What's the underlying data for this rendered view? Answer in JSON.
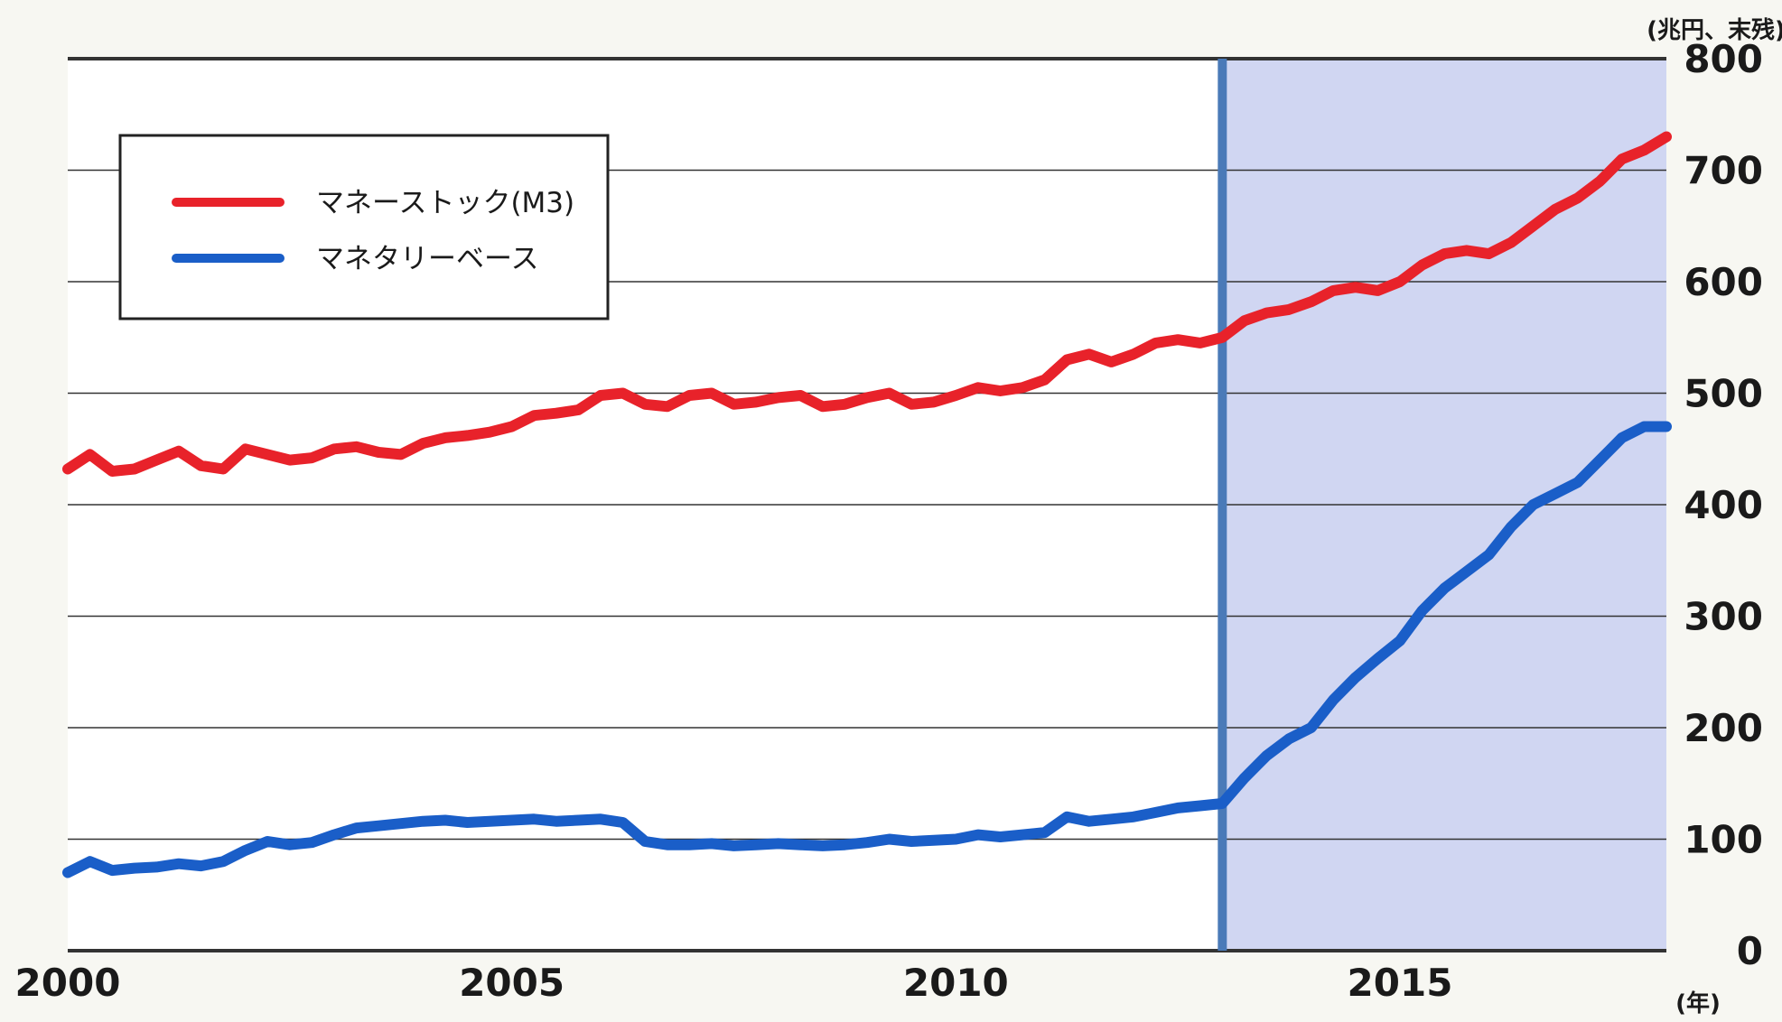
{
  "chart_data": {
    "type": "line",
    "title": "",
    "xlabel": "",
    "ylabel": "",
    "y_unit_label": "(兆円、末残)",
    "x_unit_label": "(年)",
    "xlim": [
      2000,
      2018
    ],
    "ylim": [
      0,
      800
    ],
    "x_ticks": [
      2000,
      2005,
      2010,
      2015
    ],
    "x_tick_labels": [
      "2000",
      "2005",
      "2010",
      "2015"
    ],
    "y_ticks": [
      0,
      100,
      200,
      300,
      400,
      500,
      600,
      700,
      800
    ],
    "y_tick_labels": [
      "0",
      "100",
      "200",
      "300",
      "400",
      "500",
      "600",
      "700",
      "800"
    ],
    "grid": true,
    "legend_position": "top-left",
    "colors": {
      "background": "#ffffff",
      "shaded_region": "#d0d6f2",
      "vertical_marker": "#4a7ab8",
      "gridline": "#333333"
    },
    "shaded_region": {
      "x_start": 2013,
      "x_end": 2018
    },
    "vertical_marker_x": 2013,
    "series": [
      {
        "name": "マネーストック(M3)",
        "color": "#e8222a",
        "x": [
          2000,
          2000.25,
          2000.5,
          2000.75,
          2001,
          2001.25,
          2001.5,
          2001.75,
          2002,
          2002.25,
          2002.5,
          2002.75,
          2003,
          2003.25,
          2003.5,
          2003.75,
          2004,
          2004.25,
          2004.5,
          2004.75,
          2005,
          2005.25,
          2005.5,
          2005.75,
          2006,
          2006.25,
          2006.5,
          2006.75,
          2007,
          2007.25,
          2007.5,
          2007.75,
          2008,
          2008.25,
          2008.5,
          2008.75,
          2009,
          2009.25,
          2009.5,
          2009.75,
          2010,
          2010.25,
          2010.5,
          2010.75,
          2011,
          2011.25,
          2011.5,
          2011.75,
          2012,
          2012.25,
          2012.5,
          2012.75,
          2013,
          2013.25,
          2013.5,
          2013.75,
          2014,
          2014.25,
          2014.5,
          2014.75,
          2015,
          2015.25,
          2015.5,
          2015.75,
          2016,
          2016.25,
          2016.5,
          2016.75,
          2017,
          2017.25,
          2017.5,
          2017.75,
          2018
        ],
        "values": [
          432,
          445,
          430,
          432,
          440,
          448,
          435,
          432,
          450,
          445,
          440,
          442,
          450,
          452,
          447,
          445,
          455,
          460,
          462,
          465,
          470,
          480,
          482,
          485,
          498,
          500,
          490,
          488,
          498,
          500,
          490,
          492,
          496,
          498,
          488,
          490,
          496,
          500,
          490,
          492,
          498,
          505,
          502,
          505,
          512,
          530,
          535,
          528,
          535,
          545,
          548,
          545,
          550,
          565,
          572,
          575,
          582,
          592,
          595,
          592,
          600,
          615,
          625,
          628,
          625,
          635,
          650,
          665,
          675,
          690,
          710,
          718,
          730
        ]
      },
      {
        "name": "マネタリーベース",
        "color": "#1a5ec8",
        "x": [
          2000,
          2000.25,
          2000.5,
          2000.75,
          2001,
          2001.25,
          2001.5,
          2001.75,
          2002,
          2002.25,
          2002.5,
          2002.75,
          2003,
          2003.25,
          2003.5,
          2003.75,
          2004,
          2004.25,
          2004.5,
          2004.75,
          2005,
          2005.25,
          2005.5,
          2005.75,
          2006,
          2006.25,
          2006.5,
          2006.75,
          2007,
          2007.25,
          2007.5,
          2007.75,
          2008,
          2008.25,
          2008.5,
          2008.75,
          2009,
          2009.25,
          2009.5,
          2009.75,
          2010,
          2010.25,
          2010.5,
          2010.75,
          2011,
          2011.25,
          2011.5,
          2011.75,
          2012,
          2012.25,
          2012.5,
          2012.75,
          2013,
          2013.25,
          2013.5,
          2013.75,
          2014,
          2014.25,
          2014.5,
          2014.75,
          2015,
          2015.25,
          2015.5,
          2015.75,
          2016,
          2016.25,
          2016.5,
          2016.75,
          2017,
          2017.25,
          2017.5,
          2017.75,
          2018
        ],
        "values": [
          70,
          80,
          72,
          74,
          75,
          78,
          76,
          80,
          90,
          98,
          95,
          97,
          104,
          110,
          112,
          114,
          116,
          117,
          115,
          116,
          117,
          118,
          116,
          117,
          118,
          115,
          98,
          95,
          95,
          96,
          94,
          95,
          96,
          95,
          94,
          95,
          97,
          100,
          98,
          99,
          100,
          104,
          102,
          104,
          106,
          120,
          116,
          118,
          120,
          124,
          128,
          130,
          132,
          155,
          175,
          190,
          200,
          225,
          245,
          262,
          278,
          305,
          325,
          340,
          355,
          380,
          400,
          410,
          420,
          440,
          460,
          470,
          470
        ]
      }
    ]
  }
}
